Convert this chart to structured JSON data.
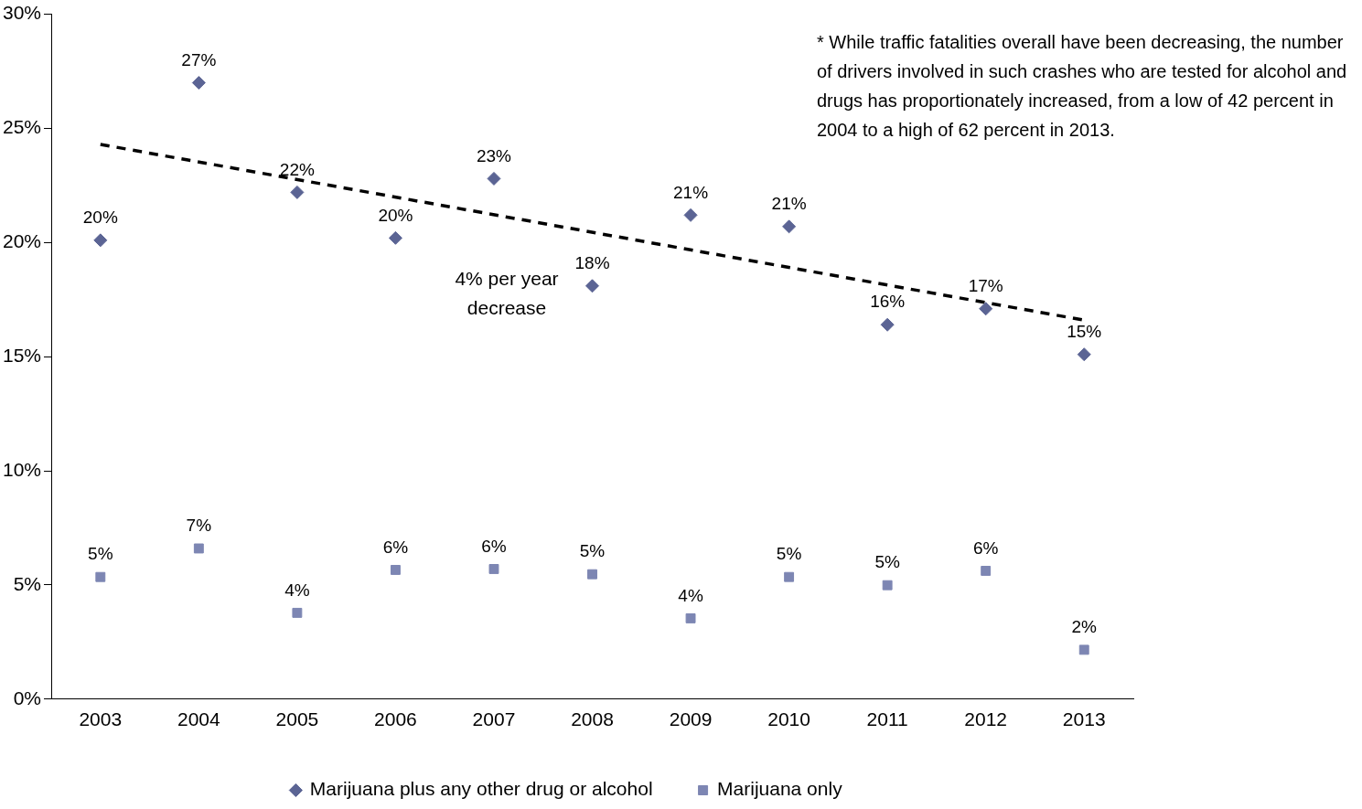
{
  "chart_data": {
    "type": "scatter",
    "categories": [
      "2003",
      "2004",
      "2005",
      "2006",
      "2007",
      "2008",
      "2009",
      "2010",
      "2011",
      "2012",
      "2013"
    ],
    "series": [
      {
        "name": "Marijuana plus any other drug or alcohol",
        "color": "#5b6494",
        "marker": "diamond",
        "values": [
          20.1,
          27.0,
          22.2,
          20.2,
          22.8,
          18.1,
          21.2,
          20.7,
          16.4,
          17.1,
          15.1
        ],
        "value_labels": [
          "20%",
          "27%",
          "22%",
          "20%",
          "23%",
          "18%",
          "21%",
          "21%",
          "16%",
          "17%",
          "15%"
        ]
      },
      {
        "name": "Marijuana only",
        "color": "#7d86b3",
        "marker": "square",
        "values": [
          5.35,
          6.6,
          3.78,
          5.66,
          5.7,
          5.47,
          3.54,
          5.35,
          4.99,
          5.62,
          2.16
        ],
        "value_labels": [
          "5%",
          "7%",
          "4%",
          "6%",
          "6%",
          "5%",
          "4%",
          "5%",
          "5%",
          "6%",
          "2%"
        ]
      },
      {
        "type": "line",
        "color": "#000000",
        "marker": "none",
        "line_style": "dashed",
        "values": [
          24.3,
          null,
          null,
          null,
          null,
          null,
          null,
          null,
          null,
          null,
          16.6
        ]
      }
    ],
    "ylim": [
      0,
      30
    ],
    "yticks": [
      {
        "value": 0,
        "label": "0%"
      },
      {
        "value": 5,
        "label": "5%"
      },
      {
        "value": 10,
        "label": "10%"
      },
      {
        "value": 15,
        "label": "15%"
      },
      {
        "value": 20,
        "label": "20%"
      },
      {
        "value": 25,
        "label": "25%"
      },
      {
        "value": 30,
        "label": "30%"
      }
    ],
    "grid": false,
    "legend": "bottom",
    "annotations": [
      "4% per year decrease",
      "* While traffic fatalities overall have been decreasing, the number of drivers involved in such crashes who are tested for alcohol and drugs has proportionately increased, from a low of 42 percent in 2004 to a high of 62 percent in 2013."
    ]
  }
}
